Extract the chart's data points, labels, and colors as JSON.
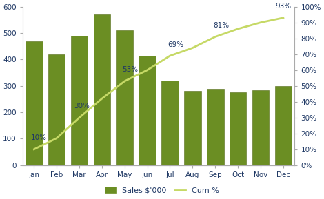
{
  "categories": [
    "Jan",
    "Feb",
    "Mar",
    "Apr",
    "May",
    "Jun",
    "Jul",
    "Aug",
    "Sep",
    "Oct",
    "Nov",
    "Dec"
  ],
  "bar_values": [
    470,
    420,
    490,
    570,
    510,
    415,
    320,
    280,
    290,
    275,
    285,
    300
  ],
  "cum_pct": [
    0.1,
    0.17,
    0.3,
    0.42,
    0.53,
    0.6,
    0.69,
    0.74,
    0.81,
    0.86,
    0.9,
    0.93
  ],
  "cum_pct_labels": {
    "0": "10%",
    "2": "30%",
    "4": "53%",
    "6": "69%",
    "8": "81%",
    "11": "93%"
  },
  "bar_color": "#6B8E23",
  "bar_edge_color": "#556B1A",
  "line_color": "#C6D966",
  "line_width": 2.0,
  "left_ylim": [
    0,
    600
  ],
  "left_yticks": [
    0,
    100,
    200,
    300,
    400,
    500,
    600
  ],
  "right_ylim": [
    0,
    1.0
  ],
  "right_yticks": [
    0.0,
    0.1,
    0.2,
    0.3,
    0.4,
    0.5,
    0.6,
    0.7,
    0.8,
    0.9,
    1.0
  ],
  "right_yticklabels": [
    "0%",
    "10%",
    "20%",
    "30%",
    "40%",
    "50%",
    "60%",
    "70%",
    "80%",
    "90%",
    "100%"
  ],
  "legend_labels": [
    "Sales $'000",
    "Cum %"
  ],
  "background_color": "#ffffff",
  "label_fontsize": 7.5,
  "tick_fontsize": 7.5,
  "legend_fontsize": 8,
  "tick_color": "#1F3864",
  "label_color": "#1F3864",
  "spine_color": "#AAAAAA"
}
